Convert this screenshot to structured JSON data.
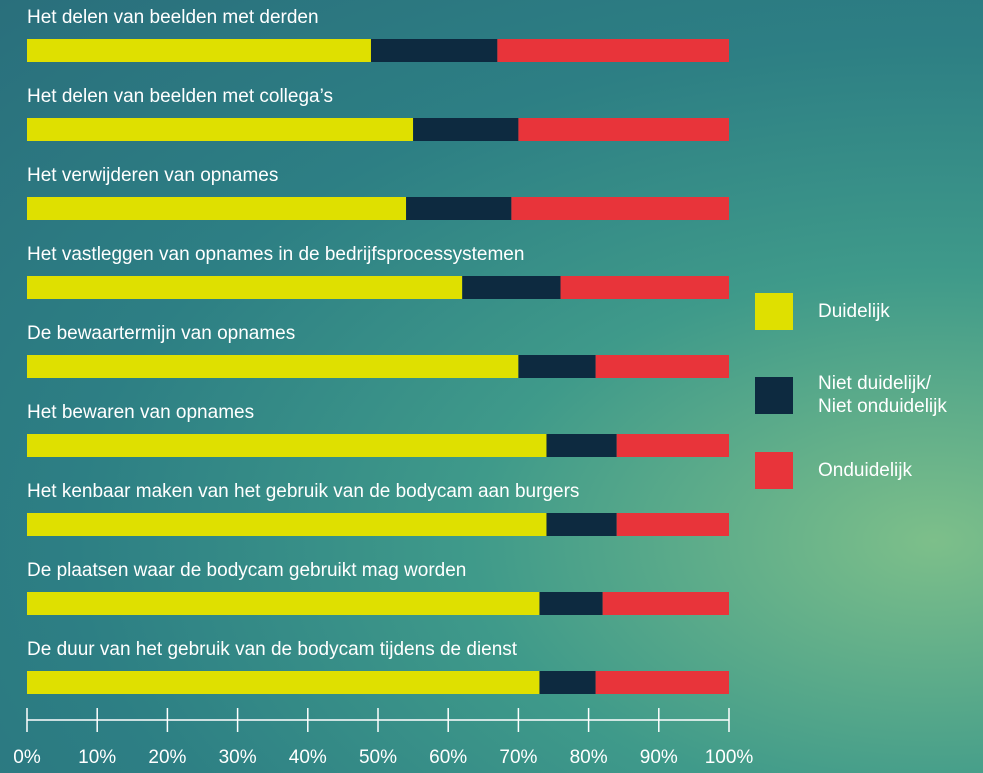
{
  "chart_data": {
    "type": "stacked-barh",
    "categories": [
      "Het delen van beelden met derden",
      "Het delen van beelden met collega’s",
      "Het verwijderen van opnames",
      "Het vastleggen van opnames in de bedrijfsprocessystemen",
      "De bewaartermijn van opnames",
      "Het bewaren van opnames",
      "Het kenbaar maken van het gebruik van de bodycam aan burgers",
      "De plaatsen waar de bodycam gebruikt mag worden",
      "De duur van het gebruik van de bodycam tijdens de dienst"
    ],
    "series": [
      {
        "name": "Duidelijk",
        "color": "#dfe000",
        "values": [
          49,
          55,
          54,
          62,
          70,
          74,
          74,
          73,
          73
        ]
      },
      {
        "name": "Niet duidelijk/\nNiet onduidelijk",
        "color": "#0d2a40",
        "values": [
          18,
          15,
          15,
          14,
          11,
          10,
          10,
          9,
          8
        ]
      },
      {
        "name": "Onduidelijk",
        "color": "#e8343a",
        "values": [
          33,
          30,
          31,
          24,
          19,
          16,
          16,
          18,
          19
        ]
      }
    ],
    "xlim": [
      0,
      100
    ],
    "xticks": [
      {
        "value": 0,
        "label": "0%"
      },
      {
        "value": 10,
        "label": "10%"
      },
      {
        "value": 20,
        "label": "20%"
      },
      {
        "value": 30,
        "label": "30%"
      },
      {
        "value": 40,
        "label": "40%"
      },
      {
        "value": 50,
        "label": "50%"
      },
      {
        "value": 60,
        "label": "60%"
      },
      {
        "value": 70,
        "label": "70%"
      },
      {
        "value": 80,
        "label": "80%"
      },
      {
        "value": 90,
        "label": "90%"
      },
      {
        "value": 100,
        "label": "100%"
      }
    ],
    "legend": "right"
  }
}
